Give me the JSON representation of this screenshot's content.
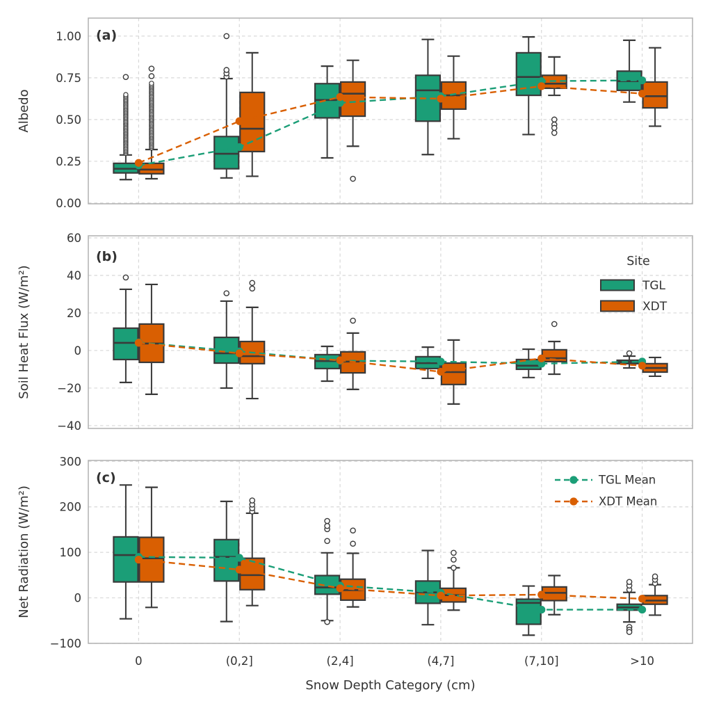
{
  "figure": {
    "background": "#ffffff",
    "x_axis": {
      "label": "Snow Depth Category (cm)",
      "categories": [
        "0",
        "(0,2]",
        "(2,4]",
        "(4,7]",
        "(7,10]",
        ">10"
      ]
    },
    "colors": {
      "tgl": "#1b9e77",
      "xdt": "#d95f02",
      "box_edge": "#3a3a3a",
      "grid": "#d8d8d8",
      "frame": "#b0b0b0",
      "text": "#333333"
    },
    "legend_site": {
      "title": "Site",
      "items": [
        {
          "label": "TGL",
          "color": "#1b9e77"
        },
        {
          "label": "XDT",
          "color": "#d95f02"
        }
      ]
    },
    "legend_mean": {
      "items": [
        {
          "label": "TGL Mean",
          "color": "#1b9e77"
        },
        {
          "label": "XDT Mean",
          "color": "#d95f02"
        }
      ]
    }
  },
  "chart_data": [
    {
      "type": "box",
      "id": "a",
      "panel_label": "(a)",
      "ylabel": "Albedo",
      "ylim": [
        -0.005,
        1.108
      ],
      "yticks": [
        0.0,
        0.25,
        0.5,
        0.75,
        1.0
      ],
      "ytick_labels": [
        "0.00",
        "0.25",
        "0.50",
        "0.75",
        "1.00"
      ],
      "categories": [
        "0",
        "(0,2]",
        "(2,4]",
        "(4,7]",
        "(7,10]",
        ">10"
      ],
      "grid": true,
      "legend_position": "none",
      "series": [
        {
          "name": "TGL",
          "color": "#1b9e77",
          "means": [
            0.225,
            0.335,
            0.6,
            0.64,
            0.73,
            0.735
          ],
          "boxes": [
            {
              "lo": 0.14,
              "q1": 0.18,
              "med": 0.205,
              "q3": 0.2375,
              "hi": 0.2875,
              "outliers": [
                0.755
              ],
              "stack": {
                "from": 0.298,
                "to": 0.655,
                "step": 0.009
              }
            },
            {
              "lo": 0.15,
              "q1": 0.205,
              "med": 0.295,
              "q3": 0.398,
              "hi": 0.745,
              "outliers": [
                0.757,
                0.777,
                0.797,
                1.0
              ]
            },
            {
              "lo": 0.27,
              "q1": 0.51,
              "med": 0.617,
              "q3": 0.715,
              "hi": 0.82,
              "outliers": []
            },
            {
              "lo": 0.29,
              "q1": 0.49,
              "med": 0.675,
              "q3": 0.765,
              "hi": 0.98,
              "outliers": []
            },
            {
              "lo": 0.41,
              "q1": 0.645,
              "med": 0.755,
              "q3": 0.9,
              "hi": 0.995,
              "outliers": []
            },
            {
              "lo": 0.605,
              "q1": 0.675,
              "med": 0.73,
              "q3": 0.79,
              "hi": 0.975,
              "outliers": []
            }
          ]
        },
        {
          "name": "XDT",
          "color": "#d95f02",
          "means": [
            0.24,
            0.49,
            0.635,
            0.625,
            0.7,
            0.655
          ],
          "boxes": [
            {
              "lo": 0.145,
              "q1": 0.175,
              "med": 0.2,
              "q3": 0.2375,
              "hi": 0.32,
              "outliers": [
                0.76,
                0.805
              ],
              "stack": {
                "from": 0.33,
                "to": 0.72,
                "step": 0.009
              }
            },
            {
              "lo": 0.16,
              "q1": 0.308,
              "med": 0.445,
              "q3": 0.6625,
              "hi": 0.9,
              "outliers": []
            },
            {
              "lo": 0.34,
              "q1": 0.52,
              "med": 0.655,
              "q3": 0.725,
              "hi": 0.855,
              "outliers": [
                0.145
              ]
            },
            {
              "lo": 0.385,
              "q1": 0.5625,
              "med": 0.645,
              "q3": 0.725,
              "hi": 0.88,
              "outliers": []
            },
            {
              "lo": 0.645,
              "q1": 0.6875,
              "med": 0.715,
              "q3": 0.765,
              "hi": 0.875,
              "outliers": [
                0.5,
                0.47,
                0.45,
                0.42
              ]
            },
            {
              "lo": 0.46,
              "q1": 0.57,
              "med": 0.64,
              "q3": 0.725,
              "hi": 0.93,
              "outliers": []
            }
          ]
        }
      ]
    },
    {
      "type": "box",
      "id": "b",
      "panel_label": "(b)",
      "ylabel": "Soil Heat Flux (W/m²)",
      "ylim": [
        -41.5,
        61.1
      ],
      "yticks": [
        -40,
        -20,
        0,
        20,
        40,
        60
      ],
      "ytick_labels": [
        "−40",
        "−20",
        "0",
        "20",
        "40",
        "60"
      ],
      "categories": [
        "0",
        "(0,2]",
        "(2,4]",
        "(4,7]",
        "(7,10]",
        ">10"
      ],
      "grid": true,
      "legend_position": "upper-right",
      "series": [
        {
          "name": "TGL",
          "color": "#1b9e77",
          "means": [
            4.3,
            -0.5,
            -5.4,
            -5.9,
            -7.0,
            -5.9
          ],
          "boxes": [
            {
              "lo": -17,
              "q1": -4.8,
              "med": 4.1,
              "q3": 11.9,
              "hi": 32.6,
              "outliers": [
                38.9
              ]
            },
            {
              "lo": -20,
              "q1": -6.7,
              "med": -1.5,
              "q3": 7.0,
              "hi": 26.3,
              "outliers": [
                30.5
              ]
            },
            {
              "lo": -16.3,
              "q1": -9.6,
              "med": -5.6,
              "q3": -2.2,
              "hi": 2.2,
              "outliers": []
            },
            {
              "lo": -14.8,
              "q1": -9.6,
              "med": -6.7,
              "q3": -3.3,
              "hi": 1.8,
              "outliers": []
            },
            {
              "lo": -14.4,
              "q1": -10.0,
              "med": -8.1,
              "q3": -4.8,
              "hi": 0.7,
              "outliers": []
            },
            {
              "lo": -9.3,
              "q1": -7.0,
              "med": -6.1,
              "q3": -5.2,
              "hi": -3.0,
              "outliers": [
                -1.5
              ]
            }
          ]
        },
        {
          "name": "XDT",
          "color": "#d95f02",
          "means": [
            4.1,
            -1.5,
            -5.2,
            -11.3,
            -4.2,
            -8.1
          ],
          "boxes": [
            {
              "lo": -23.3,
              "q1": -6.3,
              "med": 3.7,
              "q3": 14.1,
              "hi": 35.2,
              "outliers": []
            },
            {
              "lo": -25.6,
              "q1": -7.0,
              "med": -3.0,
              "q3": 4.8,
              "hi": 23.0,
              "outliers": [
                33,
                36
              ]
            },
            {
              "lo": -20.7,
              "q1": -11.9,
              "med": -5.9,
              "q3": -0.7,
              "hi": 9.3,
              "outliers": [
                15.9
              ]
            },
            {
              "lo": -28.5,
              "q1": -18.1,
              "med": -11.5,
              "q3": -6.7,
              "hi": 5.6,
              "outliers": []
            },
            {
              "lo": -12.6,
              "q1": -5.9,
              "med": -4.1,
              "q3": 0.4,
              "hi": 4.8,
              "outliers": [
                14.1
              ]
            },
            {
              "lo": -13.7,
              "q1": -11.5,
              "med": -9.3,
              "q3": -7.0,
              "hi": -3.7,
              "outliers": []
            }
          ]
        }
      ]
    },
    {
      "type": "box",
      "id": "c",
      "panel_label": "(c)",
      "ylabel": "Net Radiation (W/m²)",
      "ylim": [
        -100,
        302
      ],
      "yticks": [
        -100,
        0,
        100,
        200,
        300
      ],
      "ytick_labels": [
        "−100",
        "0",
        "100",
        "200",
        "300"
      ],
      "categories": [
        "0",
        "(0,2]",
        "(2,4]",
        "(4,7]",
        "(7,10]",
        ">10"
      ],
      "grid": true,
      "legend_position": "upper-right-mean",
      "series": [
        {
          "name": "TGL",
          "color": "#1b9e77",
          "means": [
            90,
            88,
            27,
            11,
            -26,
            -26
          ],
          "boxes": [
            {
              "lo": -46,
              "q1": 35,
              "med": 94,
              "q3": 134,
              "hi": 248,
              "outliers": []
            },
            {
              "lo": -52,
              "q1": 37,
              "med": 90,
              "q3": 128,
              "hi": 212,
              "outliers": []
            },
            {
              "lo": -50,
              "q1": 8,
              "med": 23,
              "q3": 49,
              "hi": 99,
              "outliers": [
                125,
                151,
                158,
                169,
                -53
              ]
            },
            {
              "lo": -59,
              "q1": -12,
              "med": 12,
              "q3": 37,
              "hi": 104,
              "outliers": []
            },
            {
              "lo": -82,
              "q1": -58,
              "med": -11,
              "q3": -3,
              "hi": 26,
              "outliers": []
            },
            {
              "lo": -53,
              "q1": -27,
              "med": -21,
              "q3": -14,
              "hi": 12,
              "outliers": [
                18,
                27,
                35,
                -64,
                -70,
                -75
              ]
            }
          ]
        },
        {
          "name": "XDT",
          "color": "#d95f02",
          "means": [
            84,
            62,
            21,
            5,
            7,
            -2
          ],
          "boxes": [
            {
              "lo": -21,
              "q1": 35,
              "med": 87,
              "q3": 133,
              "hi": 243,
              "outliers": []
            },
            {
              "lo": -17,
              "q1": 18,
              "med": 50,
              "q3": 87,
              "hi": 186,
              "outliers": [
                190,
                197,
                205,
                214
              ]
            },
            {
              "lo": -20,
              "q1": -5,
              "med": 17,
              "q3": 41,
              "hi": 98,
              "outliers": [
                119,
                148
              ]
            },
            {
              "lo": -27,
              "q1": -9,
              "med": 6,
              "q3": 21,
              "hi": 66,
              "outliers": [
                66,
                84,
                99
              ]
            },
            {
              "lo": -37,
              "q1": -6,
              "med": 11,
              "q3": 24,
              "hi": 49,
              "outliers": []
            },
            {
              "lo": -38,
              "q1": -14,
              "med": -6,
              "q3": 5,
              "hi": 29,
              "outliers": [
                32,
                40,
                47
              ]
            }
          ]
        }
      ]
    }
  ]
}
